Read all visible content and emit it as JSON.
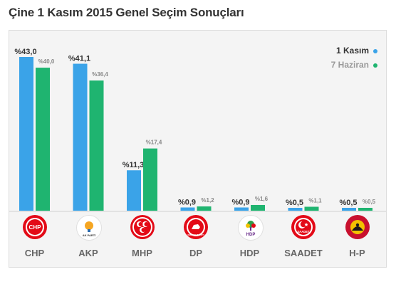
{
  "header": {
    "title": "Çine 1 Kasım 2015 Genel Seçim Sonuçları"
  },
  "legend": [
    {
      "label": "1 Kasım",
      "color": "#3aa3e8",
      "text_color": "#333333"
    },
    {
      "label": "7 Haziran",
      "color": "#1fb470",
      "text_color": "#999999"
    }
  ],
  "chart_data": {
    "type": "bar",
    "title": "Çine 1 Kasım 2015 Genel Seçim Sonuçları",
    "categories": [
      "CHP",
      "AKP",
      "MHP",
      "DP",
      "HDP",
      "SAADET",
      "H-P"
    ],
    "series": [
      {
        "name": "1 Kasım",
        "values": [
          43.0,
          41.1,
          11.3,
          0.9,
          0.9,
          0.5,
          0.5
        ],
        "labels": [
          "%43,0",
          "%41,1",
          "%11,3",
          "%0,9",
          "%0,9",
          "%0,5",
          "%0,5"
        ],
        "color": "#3aa3e8"
      },
      {
        "name": "7 Haziran",
        "values": [
          40.0,
          36.4,
          17.4,
          1.2,
          1.6,
          1.1,
          0.5
        ],
        "labels": [
          "%40,0",
          "%36,4",
          "%17,4",
          "%1,2",
          "%1,6",
          "%1,1",
          "%0,5"
        ],
        "color": "#1fb470"
      }
    ],
    "ylim": [
      0,
      45
    ],
    "grid": false,
    "legend_position": "top-right"
  },
  "parties": [
    {
      "name": "CHP",
      "logo_text": "CHP",
      "logo_icon": "chp-six-arrows-icon",
      "color": "#e30a17"
    },
    {
      "name": "AKP",
      "logo_text": "AK PARTİ",
      "logo_icon": "akp-lightbulb-icon",
      "color": "#f5a623"
    },
    {
      "name": "MHP",
      "logo_text": "",
      "logo_icon": "mhp-three-crescents-icon",
      "color": "#e30a17"
    },
    {
      "name": "DP",
      "logo_text": "DEMOKRAT PARTİ",
      "logo_icon": "dp-white-horse-icon",
      "color": "#e30a17"
    },
    {
      "name": "HDP",
      "logo_text": "HDP",
      "logo_icon": "hdp-tree-icon",
      "color": "#6a2c8a"
    },
    {
      "name": "SAADET",
      "logo_text": "SAADET",
      "logo_icon": "saadet-crescent-star-icon",
      "color": "#e30a17"
    },
    {
      "name": "H-P",
      "logo_text": "",
      "logo_icon": "hp-people-sun-icon",
      "color": "#c8102e"
    }
  ]
}
